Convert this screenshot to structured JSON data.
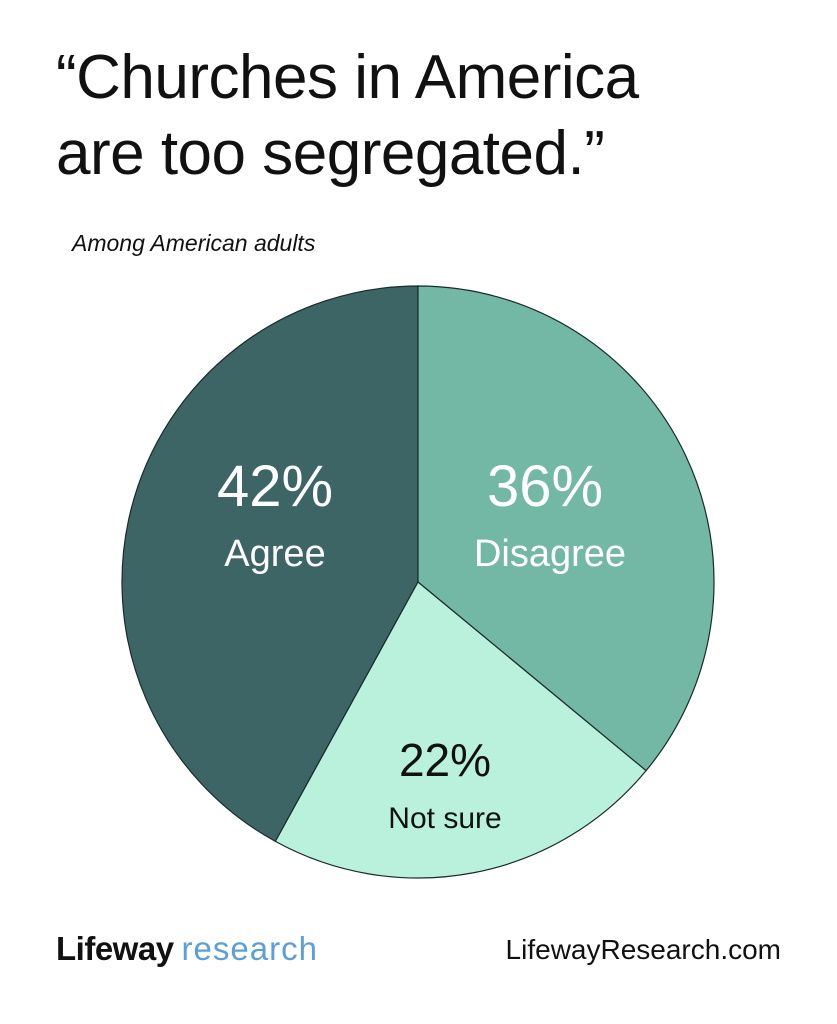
{
  "header": {
    "title_lines": [
      "“Churches in America",
      "are too segregated.”"
    ],
    "subtitle": "Among American adults"
  },
  "footer": {
    "brand_primary": "Lifeway",
    "brand_secondary": "research",
    "url": "LifewayResearch.com"
  },
  "colors": {
    "agree": "#3d6566",
    "disagree": "#73b8a5",
    "not_sure": "#b9f1dc",
    "brand_accent": "#5b9fd8"
  },
  "chart_data": {
    "type": "pie",
    "categories": [
      "Agree",
      "Disagree",
      "Not sure"
    ],
    "values": [
      42,
      36,
      22
    ],
    "value_labels": [
      "42%",
      "36%",
      "22%"
    ],
    "start": "12 o'clock, counterclockwise from Agree",
    "legend": "none (labels inside slices)"
  }
}
